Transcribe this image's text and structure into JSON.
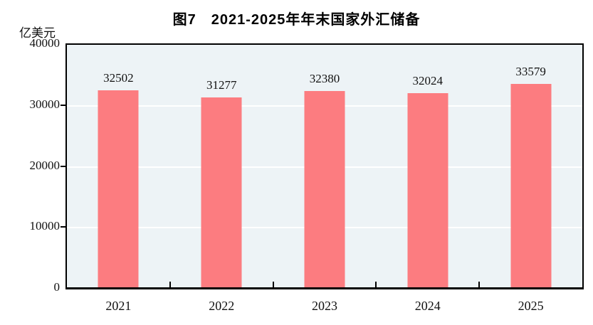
{
  "chart_data": {
    "type": "bar",
    "title": "图7　2021-2025年年末国家外汇储备",
    "unit_label": "亿美元",
    "categories": [
      "2021",
      "2022",
      "2023",
      "2024",
      "2025"
    ],
    "values": [
      32502,
      31277,
      32380,
      32024,
      33579
    ],
    "data_labels": [
      "32502",
      "31277",
      "32380",
      "32024",
      "33579"
    ],
    "ylim": [
      0,
      40000
    ],
    "ytick_interval": 10000,
    "ytick_labels_top_to_bottom": [
      "40000",
      "30000",
      "20000",
      "10000",
      "0"
    ],
    "grid": "horizontal white gridlines at 10000/20000/30000",
    "legend": "none",
    "colors": {
      "bar": "#FC7C80",
      "plot_background": "#EDF3F6",
      "gridline": "#FFFFFF",
      "axis": "#000000",
      "text": "#111111"
    }
  }
}
